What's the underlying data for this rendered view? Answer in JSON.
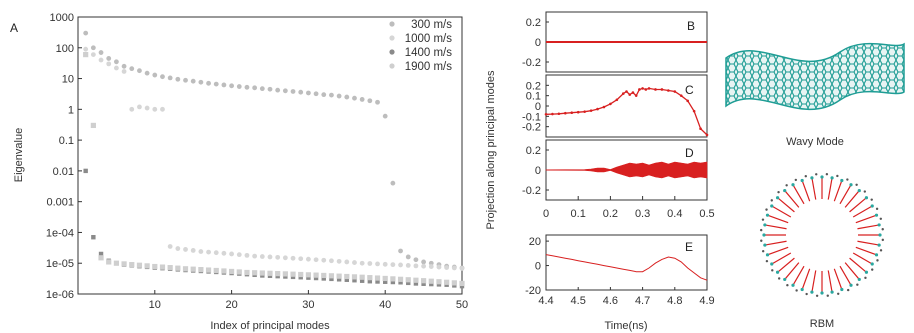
{
  "figure": {
    "panel_a_label": "A",
    "panel_b_label": "B",
    "panel_c_label": "C",
    "panel_d_label": "D",
    "panel_e_label": "E",
    "wavy_caption": "Wavy Mode",
    "rbm_caption": "RBM"
  },
  "colors": {
    "red": "#d82020",
    "teal": "#2aa8a0",
    "grey": "#999999"
  },
  "chart_data": [
    {
      "panel": "A",
      "type": "scatter",
      "xlabel": "Index of principal modes",
      "ylabel": "Eigenvalue",
      "xlim": [
        0,
        50
      ],
      "ylim": [
        1e-06,
        1000
      ],
      "yscale": "log",
      "xticks": [
        "10",
        "20",
        "30",
        "40",
        "50"
      ],
      "yticks": [
        "1000",
        "100",
        "10",
        "1",
        "0.1",
        "0.01",
        "0.001",
        "1e-04",
        "1e-05",
        "1e-06"
      ],
      "legend_position": "top-right",
      "series": [
        {
          "name": "300 m/s",
          "style": "grey-cross",
          "x": [
            1,
            2,
            3,
            4,
            5,
            6,
            7,
            8,
            9,
            10,
            11,
            12,
            13,
            14,
            15,
            16,
            17,
            18,
            19,
            20,
            21,
            22,
            23,
            24,
            25,
            26,
            27,
            28,
            29,
            30,
            31,
            32,
            33,
            34,
            35,
            36,
            37,
            38,
            39,
            40,
            41,
            42,
            43,
            44,
            45,
            46,
            47,
            48,
            49,
            50
          ],
          "y": [
            300,
            100,
            70,
            45,
            35,
            25,
            21,
            18,
            15,
            13,
            11.5,
            10.5,
            9.5,
            8.8,
            8.2,
            7.6,
            7,
            6.6,
            6.2,
            5.8,
            5.5,
            5.2,
            5,
            4.7,
            4.5,
            4.2,
            4,
            3.8,
            3.6,
            3.4,
            3.2,
            3,
            2.9,
            2.7,
            2.5,
            2.3,
            2.1,
            1.9,
            1.7,
            0.6,
            0.004,
            2.5e-05,
            1.6e-05,
            1.3e-05,
            1.1e-05,
            1e-05,
            9e-06,
            8e-06,
            7.5e-06,
            7e-06
          ]
        },
        {
          "name": "1000 m/s",
          "style": "light-grey-circle",
          "x": [
            1,
            2,
            3,
            4,
            5,
            6,
            7,
            8,
            9,
            10,
            11,
            12,
            13,
            14,
            15,
            16,
            17,
            18,
            19,
            20,
            21,
            22,
            23,
            24,
            25,
            26,
            27,
            28,
            29,
            30,
            31,
            32,
            33,
            34,
            35,
            36,
            37,
            38,
            39,
            40,
            41,
            42,
            43,
            44,
            45,
            46,
            47,
            48,
            49,
            50
          ],
          "y": [
            90,
            60,
            40,
            30,
            22,
            17,
            1,
            1.2,
            1.1,
            1.0,
            1.0,
            3.5e-05,
            3e-05,
            2.8e-05,
            2.6e-05,
            2.4e-05,
            2.3e-05,
            2.2e-05,
            2.1e-05,
            2e-05,
            1.9e-05,
            1.8e-05,
            1.7e-05,
            1.65e-05,
            1.6e-05,
            1.55e-05,
            1.5e-05,
            1.45e-05,
            1.4e-05,
            1.35e-05,
            1.3e-05,
            1.25e-05,
            1.2e-05,
            1.15e-05,
            1.1e-05,
            1.05e-05,
            1e-05,
            9.8e-06,
            9.5e-06,
            9.2e-06,
            9e-06,
            8.8e-06,
            8.5e-06,
            8.2e-06,
            8e-06,
            7.8e-06,
            7.5e-06,
            7.2e-06,
            7e-06,
            6.8e-06
          ]
        },
        {
          "name": "1400 m/s",
          "style": "dark-grey-square",
          "x": [
            1,
            2,
            3,
            4,
            5,
            6,
            7,
            8,
            9,
            10,
            11,
            12,
            13,
            14,
            15,
            16,
            17,
            18,
            19,
            20,
            21,
            22,
            23,
            24,
            25,
            26,
            27,
            28,
            29,
            30,
            31,
            32,
            33,
            34,
            35,
            36,
            37,
            38,
            39,
            40,
            41,
            42,
            43,
            44,
            45,
            46,
            47,
            48,
            49,
            50
          ],
          "y": [
            0.01,
            7e-05,
            2e-05,
            1.2e-05,
            1e-05,
            9e-06,
            8.5e-06,
            8e-06,
            7.6e-06,
            7.2e-06,
            6.9e-06,
            6.6e-06,
            6.3e-06,
            6e-06,
            5.8e-06,
            5.6e-06,
            5.4e-06,
            5.2e-06,
            5e-06,
            4.8e-06,
            4.6e-06,
            4.4e-06,
            4.2e-06,
            4e-06,
            3.9e-06,
            3.8e-06,
            3.7e-06,
            3.6e-06,
            3.5e-06,
            3.4e-06,
            3.3e-06,
            3.2e-06,
            3.1e-06,
            3e-06,
            2.9e-06,
            2.8e-06,
            2.7e-06,
            2.6e-06,
            2.55e-06,
            2.5e-06,
            2.45e-06,
            2.4e-06,
            2.3e-06,
            2.2e-06,
            2.15e-06,
            2.1e-06,
            2.05e-06,
            2e-06,
            1.9e-06,
            1.8e-06
          ]
        },
        {
          "name": "1900 m/s",
          "style": "pale-grey-diamond",
          "x": [
            1,
            2,
            3,
            4,
            5,
            6,
            7,
            8,
            9,
            10,
            11,
            12,
            13,
            14,
            15,
            16,
            17,
            18,
            19,
            20,
            21,
            22,
            23,
            24,
            25,
            26,
            27,
            28,
            29,
            30,
            31,
            32,
            33,
            34,
            35,
            36,
            37,
            38,
            39,
            40,
            41,
            42,
            43,
            44,
            45,
            46,
            47,
            48,
            49,
            50
          ],
          "y": [
            60,
            0.3,
            1.5e-05,
            1.1e-05,
            1e-05,
            9.5e-06,
            9e-06,
            8.6e-06,
            8.2e-06,
            7.8e-06,
            7.5e-06,
            7.2e-06,
            6.9e-06,
            6.6e-06,
            6.4e-06,
            6.2e-06,
            6e-06,
            5.8e-06,
            5.6e-06,
            5.4e-06,
            5.2e-06,
            5e-06,
            4.9e-06,
            4.8e-06,
            4.7e-06,
            4.6e-06,
            4.5e-06,
            4.4e-06,
            4.3e-06,
            4.2e-06,
            4.1e-06,
            4e-06,
            3.9e-06,
            3.8e-06,
            3.7e-06,
            3.6e-06,
            3.5e-06,
            3.4e-06,
            3.3e-06,
            3.2e-06,
            3.1e-06,
            3e-06,
            2.9e-06,
            2.8e-06,
            2.7e-06,
            2.6e-06,
            2.5e-06,
            2.4e-06,
            2.3e-06,
            2.2e-06
          ]
        }
      ]
    },
    {
      "panel": "B-D",
      "type": "line",
      "ylabel": "Projection along principal modes",
      "xlim": [
        0,
        0.5
      ],
      "xticks": [
        "0",
        "0.1",
        "0.2",
        "0.3",
        "0.4",
        "0.5"
      ],
      "yticks": [
        "0.2",
        "0",
        "-0.2"
      ],
      "subplots": [
        {
          "label": "B",
          "ylim": [
            -0.3,
            0.3
          ],
          "yticks": [
            "0.2",
            "0",
            "-0.2"
          ],
          "x": [
            0,
            0.5
          ],
          "y": [
            0,
            0
          ]
        },
        {
          "label": "C",
          "ylim": [
            -0.3,
            0.3
          ],
          "yticks": [
            "0.2",
            "0.1",
            "0",
            "-0.1",
            "-0.2"
          ],
          "x": [
            0,
            0.02,
            0.04,
            0.06,
            0.08,
            0.1,
            0.12,
            0.14,
            0.16,
            0.18,
            0.2,
            0.22,
            0.24,
            0.25,
            0.26,
            0.27,
            0.28,
            0.29,
            0.3,
            0.31,
            0.32,
            0.34,
            0.36,
            0.38,
            0.4,
            0.42,
            0.44,
            0.46,
            0.48,
            0.5
          ],
          "y": [
            -0.08,
            -0.078,
            -0.075,
            -0.07,
            -0.065,
            -0.06,
            -0.055,
            -0.045,
            -0.03,
            -0.01,
            0.02,
            0.06,
            0.12,
            0.14,
            0.11,
            0.13,
            0.1,
            0.16,
            0.17,
            0.16,
            0.17,
            0.16,
            0.16,
            0.15,
            0.14,
            0.1,
            0.05,
            -0.05,
            -0.22,
            -0.28
          ]
        },
        {
          "label": "D",
          "ylim": [
            -0.3,
            0.3
          ],
          "yticks": [
            "0.2",
            "0",
            "-0.2"
          ],
          "x": [
            0,
            0.12,
            0.14,
            0.16,
            0.18,
            0.2,
            0.22,
            0.24,
            0.26,
            0.28,
            0.3,
            0.32,
            0.34,
            0.36,
            0.38,
            0.4,
            0.42,
            0.44,
            0.46,
            0.48,
            0.5
          ],
          "envelope": [
            0.002,
            0.004,
            0.01,
            0.02,
            0.02,
            0.005,
            0.03,
            0.05,
            0.07,
            0.06,
            0.07,
            0.05,
            0.07,
            0.08,
            0.06,
            0.08,
            0.07,
            0.06,
            0.08,
            0.07,
            0.08
          ]
        }
      ]
    },
    {
      "panel": "E",
      "type": "line",
      "xlabel": "Time(ns)",
      "xlim": [
        4.4,
        4.9
      ],
      "ylim": [
        -20,
        25
      ],
      "xticks": [
        "4.4",
        "4.5",
        "4.6",
        "4.7",
        "4.8",
        "4.9"
      ],
      "yticks": [
        "20",
        "0",
        "-20"
      ],
      "x": [
        4.4,
        4.42,
        4.44,
        4.46,
        4.48,
        4.5,
        4.52,
        4.54,
        4.56,
        4.58,
        4.6,
        4.62,
        4.64,
        4.66,
        4.68,
        4.7,
        4.72,
        4.74,
        4.76,
        4.78,
        4.8,
        4.82,
        4.84,
        4.86,
        4.88,
        4.9
      ],
      "y": [
        9,
        8,
        7,
        6,
        5,
        4,
        3,
        2,
        1,
        0,
        -1,
        -2,
        -3,
        -4,
        -5,
        -5,
        -2,
        2,
        5,
        7,
        6,
        3,
        -2,
        -6,
        -10,
        -12
      ]
    }
  ]
}
